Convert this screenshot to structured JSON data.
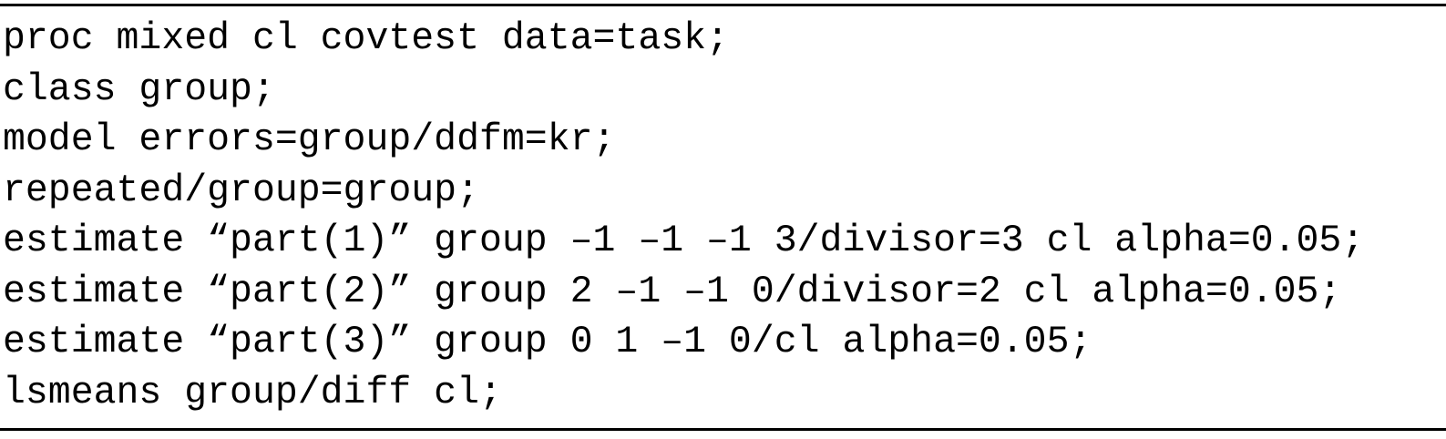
{
  "code": {
    "lines": [
      "proc mixed cl covtest data=task;",
      "class group;",
      "model errors=group/ddfm=kr;",
      "repeated/group=group;",
      "estimate “part(1)” group –1 –1 –1 3/divisor=3 cl alpha=0.05;",
      "estimate “part(2)” group 2 –1 –1 0/divisor=2 cl alpha=0.05;",
      "estimate “part(3)” group 0 1 –1 0/cl alpha=0.05;",
      "lsmeans group/diff cl;"
    ]
  }
}
